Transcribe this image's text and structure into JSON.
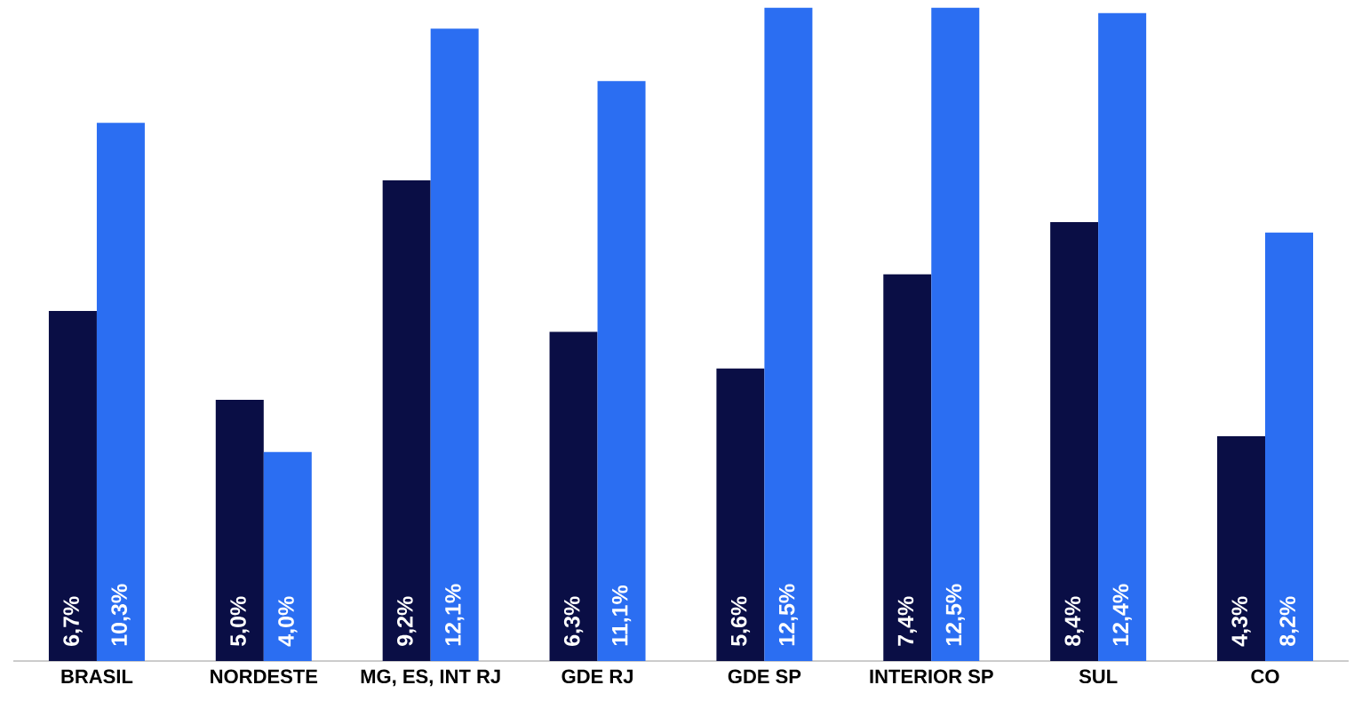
{
  "chart_data": {
    "type": "bar",
    "categories": [
      "BRASIL",
      "NORDESTE",
      "MG, ES, INT RJ",
      "GDE RJ",
      "GDE SP",
      "INTERIOR SP",
      "SUL",
      "CO"
    ],
    "series": [
      {
        "color": "#0a0e45",
        "values": [
          6.7,
          5.0,
          9.2,
          6.3,
          5.6,
          7.4,
          8.4,
          4.3
        ],
        "value_labels": [
          "6,7%",
          "5,0%",
          "9,2%",
          "6,3%",
          "5,6%",
          "7,4%",
          "8,4%",
          "4,3%"
        ]
      },
      {
        "color": "#2b6ef2",
        "values": [
          10.3,
          4.0,
          12.1,
          11.1,
          12.5,
          12.5,
          12.4,
          8.2
        ],
        "value_labels": [
          "10,3%",
          "4,0%",
          "12,1%",
          "11,1%",
          "12,5%",
          "12,5%",
          "12,4%",
          "8,2%"
        ]
      }
    ]
  }
}
